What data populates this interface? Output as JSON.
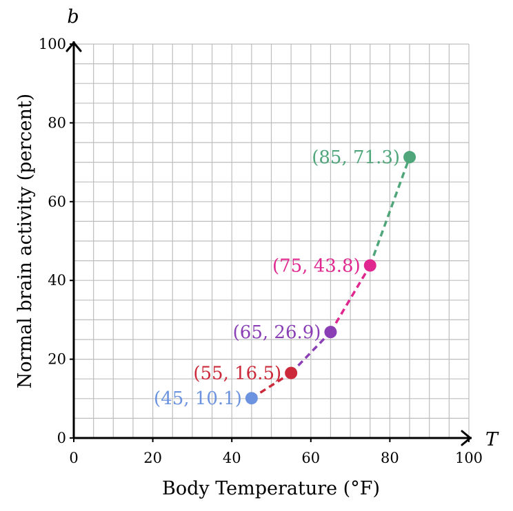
{
  "chart_data": {
    "type": "scatter",
    "xlabel": "Body Temperature (°F)",
    "ylabel": "Normal brain activity (percent)",
    "x_var": "T",
    "y_var": "b",
    "xlim": [
      0,
      100
    ],
    "ylim": [
      0,
      100
    ],
    "x_ticks": [
      "0",
      "20",
      "40",
      "60",
      "80",
      "100"
    ],
    "y_ticks": [
      "0",
      "20",
      "40",
      "60",
      "80",
      "100"
    ],
    "grid": true,
    "points": [
      {
        "x": 45,
        "y": 10.1,
        "label": "(45, 10.1)",
        "color": "#6b93e0"
      },
      {
        "x": 55,
        "y": 16.5,
        "label": "(55, 16.5)",
        "color": "#cc2a3a"
      },
      {
        "x": 65,
        "y": 26.9,
        "label": "(65, 26.9)",
        "color": "#8a3fb5"
      },
      {
        "x": 75,
        "y": 43.8,
        "label": "(75, 43.8)",
        "color": "#e0278f"
      },
      {
        "x": 85,
        "y": 71.3,
        "label": "(85, 71.3)",
        "color": "#4fa67a"
      }
    ],
    "segments_dashed": true
  }
}
